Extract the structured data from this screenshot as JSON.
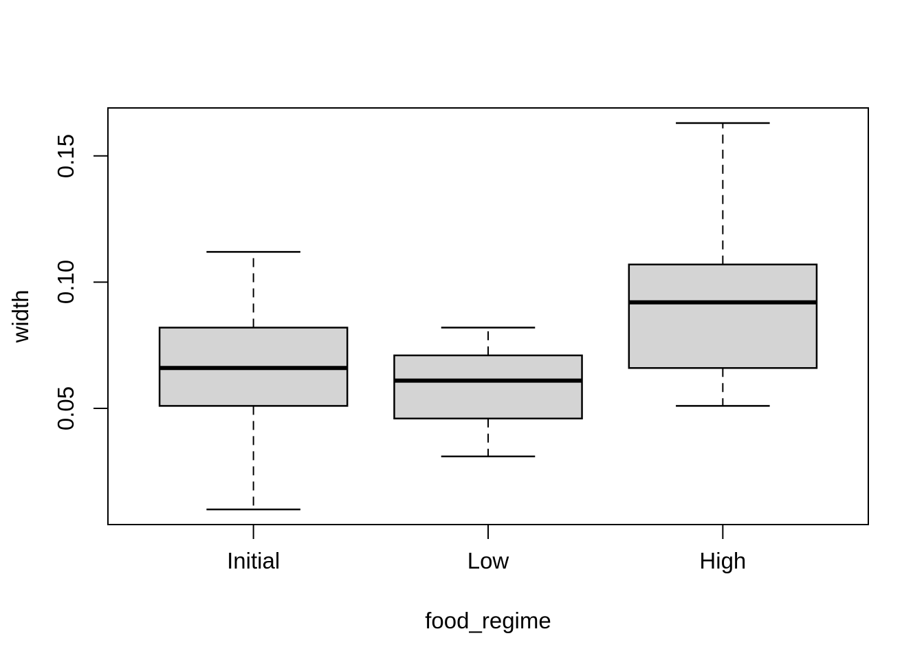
{
  "chart_data": {
    "type": "boxplot",
    "title": "",
    "xlabel": "food_regime",
    "ylabel": "width",
    "categories": [
      "Initial",
      "Low",
      "High"
    ],
    "y_tick_labels": [
      "0.05",
      "0.10",
      "0.15"
    ],
    "y_ticks": [
      0.05,
      0.1,
      0.15
    ],
    "ylim": [
      0.004,
      0.169
    ],
    "xlim": [
      0.38,
      3.62
    ],
    "grid": "off",
    "legend": "none",
    "box_width": 0.8,
    "staple_width": 0.4,
    "whisker_style": "dashed",
    "colors": {
      "box_fill": "#d4d4d4",
      "stroke": "#000000",
      "background": "#ffffff"
    },
    "series": [
      {
        "label": "Initial",
        "position": 1,
        "min": 0.01,
        "q1": 0.051,
        "median": 0.066,
        "q3": 0.082,
        "max": 0.112
      },
      {
        "label": "Low",
        "position": 2,
        "min": 0.031,
        "q1": 0.046,
        "median": 0.061,
        "q3": 0.071,
        "max": 0.082
      },
      {
        "label": "High",
        "position": 3,
        "min": 0.051,
        "q1": 0.066,
        "median": 0.092,
        "q3": 0.107,
        "max": 0.163
      }
    ]
  }
}
